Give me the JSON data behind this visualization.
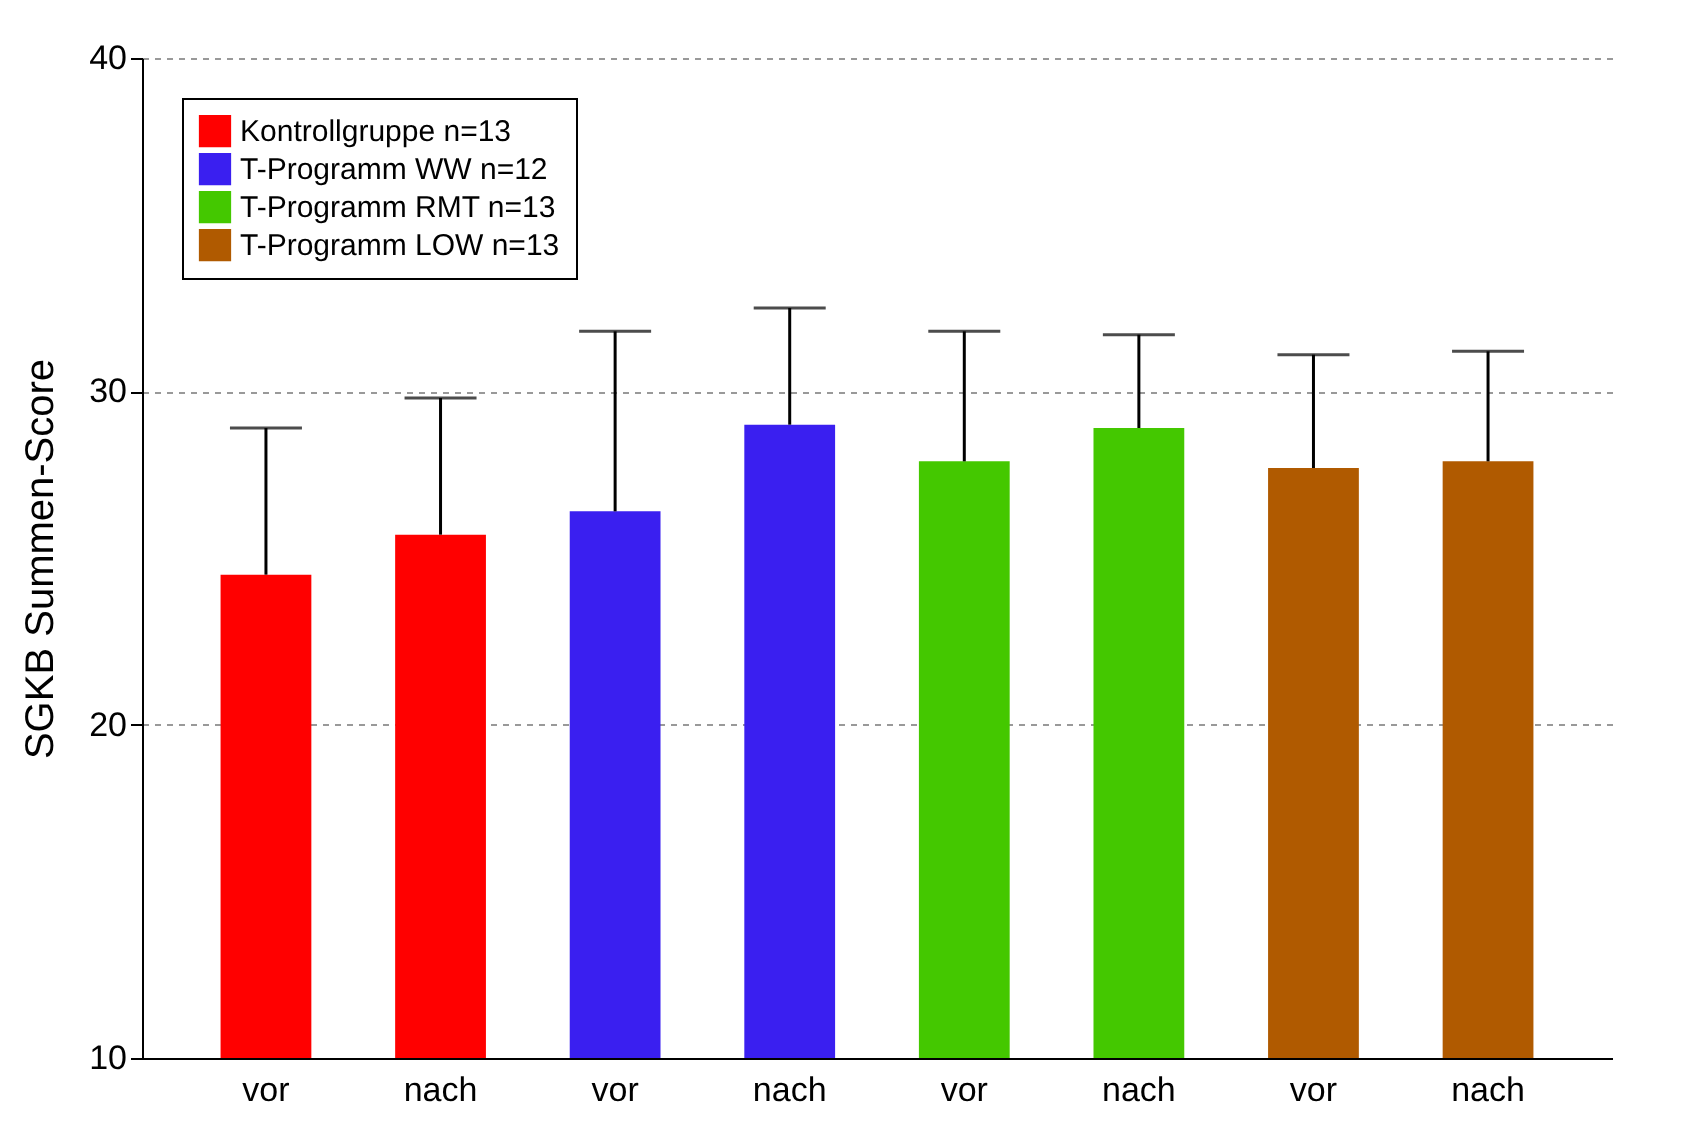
{
  "chart_data": {
    "type": "bar",
    "ylabel": "SGKB Summen-Score",
    "categories": [
      "vor",
      "nach",
      "vor",
      "nach",
      "vor",
      "nach",
      "vor",
      "nach"
    ],
    "series": [
      {
        "name": "Kontrollgruppe n=13",
        "color": "#ff0000",
        "values": [
          24.5,
          25.7,
          null,
          null,
          null,
          null,
          null,
          null
        ],
        "errors": [
          [
            24.5,
            28.9
          ],
          [
            25.7,
            29.8
          ],
          null,
          null,
          null,
          null,
          null,
          null
        ]
      },
      {
        "name": "T-Programm WW n=12",
        "color": "#3a1ff0",
        "values": [
          null,
          null,
          26.4,
          29.0,
          null,
          null,
          null,
          null
        ],
        "errors": [
          null,
          null,
          [
            26.4,
            31.8
          ],
          [
            29.0,
            32.5
          ],
          null,
          null,
          null,
          null
        ]
      },
      {
        "name": "T-Programm RMT n=13",
        "color": "#44c800",
        "values": [
          null,
          null,
          null,
          null,
          27.9,
          28.9,
          null,
          null
        ],
        "errors": [
          null,
          null,
          null,
          null,
          [
            27.9,
            31.8
          ],
          [
            28.9,
            31.7
          ],
          null,
          null
        ]
      },
      {
        "name": "T-Programm LOW n=13",
        "color": "#b05a00",
        "values": [
          null,
          null,
          null,
          null,
          null,
          null,
          27.7,
          27.9
        ],
        "errors": [
          null,
          null,
          null,
          null,
          null,
          null,
          [
            27.7,
            31.1
          ],
          [
            27.9,
            31.2
          ]
        ]
      }
    ],
    "ylim": [
      10,
      40
    ],
    "yticks": [
      10,
      20,
      30,
      40
    ],
    "grid": "y",
    "legend": "top left"
  }
}
